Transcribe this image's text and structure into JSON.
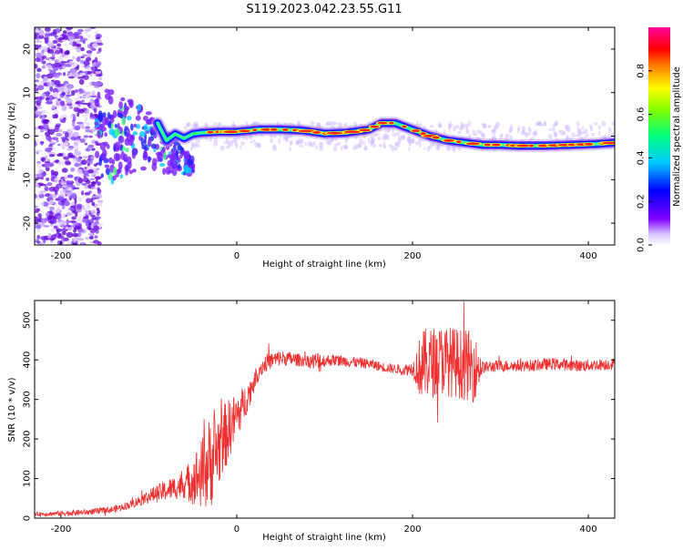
{
  "figure": {
    "title": "S119.2023.042.23.55.G11"
  },
  "chart_data": [
    {
      "type": "heatmap",
      "xlabel": "Height of straight line (km)",
      "ylabel": "Frequency (Hz)",
      "xlim": [
        -230,
        430
      ],
      "ylim": [
        -25,
        25
      ],
      "xticks": [
        -200,
        0,
        200,
        400
      ],
      "yticks": [
        -20,
        -10,
        0,
        10,
        20
      ],
      "grid": false,
      "colorbar": {
        "label": "Normalized spectral amplitude",
        "range": [
          0,
          1
        ],
        "ticks": [
          "0.0",
          "0.2",
          "0.4",
          "0.6",
          "0.8"
        ],
        "tick_values": [
          0.0,
          0.2,
          0.4,
          0.6,
          0.8
        ],
        "colormap": [
          "#ffffff",
          "#7f00ff",
          "#0000ff",
          "#00ffff",
          "#00ff00",
          "#ffff00",
          "#ff0000",
          "#ff00aa"
        ]
      },
      "ridge": {
        "description": "Dominant frequency ridge",
        "x": [
          -90,
          -80,
          -70,
          -60,
          -50,
          -40,
          -20,
          0,
          25,
          50,
          75,
          100,
          125,
          150,
          165,
          180,
          200,
          220,
          240,
          260,
          280,
          300,
          320,
          350,
          380,
          410,
          430
        ],
        "y": [
          3,
          -1,
          0.5,
          -0.5,
          0.5,
          0.8,
          1,
          1,
          1.5,
          1.5,
          1.3,
          0.6,
          0.8,
          1.5,
          3,
          3,
          1.5,
          0,
          -1,
          -1.5,
          -2,
          -2,
          -2.2,
          -2.2,
          -2,
          -1.8,
          -1.5
        ]
      }
    },
    {
      "type": "line",
      "xlabel": "Height of straight line (km)",
      "ylabel": "SNR (10 * v/v)",
      "xlim": [
        -230,
        430
      ],
      "ylim": [
        0,
        550
      ],
      "xticks": [
        -200,
        0,
        200,
        400
      ],
      "yticks": [
        0,
        100,
        200,
        300,
        400,
        500
      ],
      "grid": false,
      "color": "#ee3030",
      "x": [
        -230,
        -200,
        -170,
        -140,
        -120,
        -100,
        -80,
        -60,
        -40,
        -25,
        -15,
        -5,
        5,
        15,
        25,
        35,
        50,
        70,
        90,
        110,
        130,
        150,
        170,
        190,
        205,
        215,
        225,
        235,
        245,
        255,
        265,
        275,
        300,
        330,
        360,
        390,
        430
      ],
      "y": [
        10,
        12,
        15,
        22,
        35,
        55,
        70,
        85,
        110,
        160,
        200,
        240,
        275,
        320,
        375,
        395,
        405,
        400,
        395,
        400,
        395,
        390,
        380,
        375,
        380,
        390,
        395,
        400,
        395,
        390,
        385,
        380,
        385,
        385,
        390,
        385,
        390
      ],
      "noise": {
        "x": [
          -230,
          -120,
          -60,
          -30,
          0,
          20,
          80,
          95,
          100,
          180,
          200,
          210,
          270,
          280,
          430
        ],
        "amplitude": [
          5,
          10,
          35,
          120,
          60,
          25,
          15,
          30,
          15,
          12,
          18,
          90,
          90,
          15,
          15
        ]
      }
    }
  ]
}
